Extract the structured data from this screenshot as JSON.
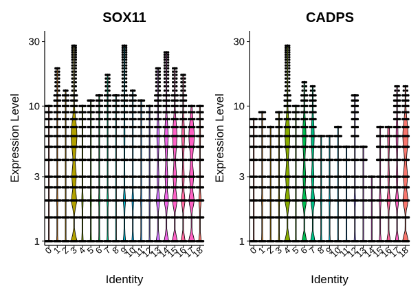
{
  "chart_data": [
    {
      "type": "violin",
      "title": "SOX11",
      "xlabel": "Identity",
      "ylabel": "Expression Level",
      "y_scale": "log",
      "ylim": [
        0.93,
        36
      ],
      "y_ticks": [
        {
          "value": 1,
          "label": "1"
        },
        {
          "value": 3,
          "label": "3"
        },
        {
          "value": 10,
          "label": "10"
        },
        {
          "value": 30,
          "label": "30"
        }
      ],
      "categories": [
        "0",
        "1",
        "2",
        "3",
        "4",
        "5",
        "6",
        "7",
        "8",
        "9",
        "10",
        "11",
        "12",
        "13",
        "14",
        "15",
        "16",
        "17",
        "18"
      ],
      "fill_colors": [
        "#F8766D",
        "#E7851E",
        "#D09400",
        "#B2A100",
        "#89AC00",
        "#45B500",
        "#00BC51",
        "#00C087",
        "#00C0B2",
        "#00BCD6",
        "#00B3F2",
        "#29A3FF",
        "#9C8DFF",
        "#D277FF",
        "#F166E8",
        "#FF61C7",
        "#FF689E",
        "#FF61C3",
        "#F8766D"
      ],
      "max_values": [
        10,
        19,
        13,
        28,
        10,
        11,
        12,
        17,
        12,
        28,
        13,
        11,
        10,
        19,
        25,
        19,
        17,
        10,
        10
      ],
      "width_profile": [
        0.08,
        0.15,
        0.1,
        0.95,
        0.2,
        0.15,
        0.15,
        0.18,
        0.1,
        0.35,
        0.25,
        0.15,
        0.12,
        0.55,
        0.7,
        0.8,
        0.6,
        0.9,
        0.35
      ]
    },
    {
      "type": "violin",
      "title": "CADPS",
      "xlabel": "Identity",
      "ylabel": "Expression Level",
      "y_scale": "log",
      "ylim": [
        0.93,
        36
      ],
      "y_ticks": [
        {
          "value": 1,
          "label": "1"
        },
        {
          "value": 3,
          "label": "3"
        },
        {
          "value": 10,
          "label": "10"
        },
        {
          "value": 30,
          "label": "30"
        }
      ],
      "categories": [
        "0",
        "1",
        "2",
        "3",
        "4",
        "5",
        "6",
        "7",
        "8",
        "9",
        "10",
        "11",
        "12",
        "13",
        "14",
        "15",
        "16",
        "17",
        "18"
      ],
      "fill_colors": [
        "#F8766D",
        "#E7851E",
        "#D09400",
        "#B2A100",
        "#89AC00",
        "#45B500",
        "#00BC51",
        "#00C087",
        "#00C0B2",
        "#00BCD6",
        "#00B3F2",
        "#29A3FF",
        "#9C8DFF",
        "#D277FF",
        "#F166E8",
        "#FF61C7",
        "#FF689E",
        "#FF61C3",
        "#F8766D"
      ],
      "max_values": [
        8,
        9,
        7,
        9,
        28,
        10,
        15,
        14,
        6,
        6,
        7,
        5,
        12,
        5,
        3,
        7,
        7,
        14,
        14
      ],
      "width_profile": [
        0.1,
        0.15,
        0.1,
        0.15,
        0.85,
        0.1,
        0.7,
        0.65,
        0.15,
        0.15,
        0.1,
        0.1,
        0.2,
        0.1,
        0.05,
        0.25,
        0.5,
        0.5,
        0.9
      ]
    }
  ]
}
